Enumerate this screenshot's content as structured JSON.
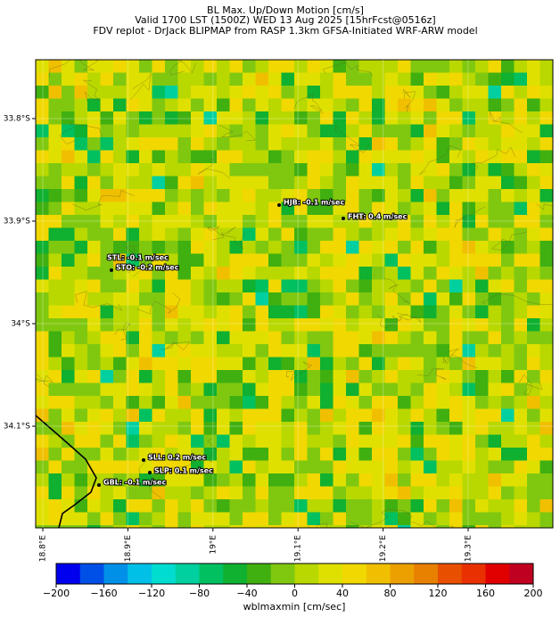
{
  "header": {
    "title": [
      "BL Max. Up/Down Motion [cm/s]",
      "Valid 1700 LST (1500Z) WED 13 Aug 2025 [15hrFcst@0516z]",
      "FDV replot - DrJack BLIPMAP from RASP 1.3km GFSA-Initiated WRF-ARW model"
    ]
  },
  "map": {
    "lat_ticks": [
      {
        "value": -33.8,
        "label": "33.8°S"
      },
      {
        "value": -33.9,
        "label": "33.9°S"
      },
      {
        "value": -34,
        "label": "34°S"
      },
      {
        "value": -34.1,
        "label": "34.1°S"
      }
    ],
    "lon_ticks": [
      {
        "value": 18.8,
        "label": "18.8°E"
      },
      {
        "value": 18.9,
        "label": "18.9°E"
      },
      {
        "value": 19,
        "label": "19°E"
      },
      {
        "value": 19.1,
        "label": "19.1°E"
      },
      {
        "value": 19.2,
        "label": "19.2°E"
      },
      {
        "value": 19.3,
        "label": "19.3°E"
      }
    ],
    "stations": [
      "HJB: -0.1 m/sec",
      "FHT: 0.4 m/sec",
      "STL: -0.1 m/sec",
      "STO: -0.2 m/sec",
      "SLL: 0.2 m/sec",
      "SLP: 0.1 m/sec",
      "GBL: -0.1 m/sec"
    ]
  },
  "colorbar": {
    "label": "wblmaxmin [cm/sec]",
    "lim": [
      -200,
      200
    ],
    "ticks": [
      {
        "value": -200,
        "label": "−200"
      },
      {
        "value": -160,
        "label": "−160"
      },
      {
        "value": -120,
        "label": "−120"
      },
      {
        "value": -80,
        "label": "−80"
      },
      {
        "value": -40,
        "label": "−40"
      },
      0,
      40,
      80,
      120,
      160,
      200
    ],
    "colors": [
      "#0000ee",
      "#0050e8",
      "#0090e8",
      "#00c0e8",
      "#00dcd0",
      "#00d0a0",
      "#00c060",
      "#10b030",
      "#40b010",
      "#80c810",
      "#b8d800",
      "#e0e000",
      "#f0d800",
      "#f0c000",
      "#eca000",
      "#e88000",
      "#e85000",
      "#e83000",
      "#e00000",
      "#c00020"
    ]
  }
}
